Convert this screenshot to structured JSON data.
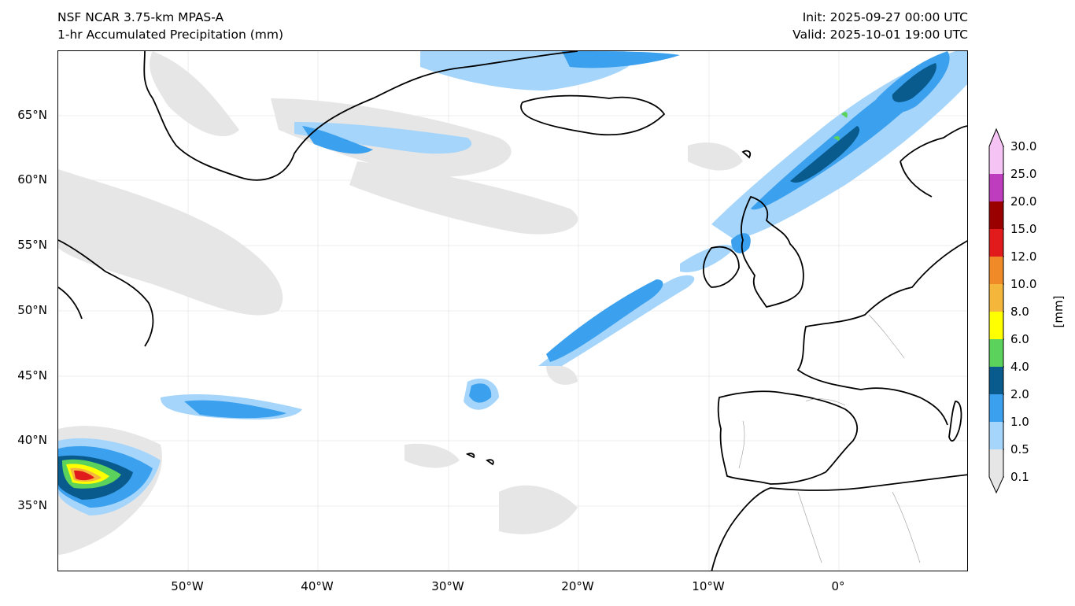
{
  "header": {
    "model": "NSF NCAR 3.75-km MPAS-A",
    "field": "1-hr Accumulated Precipitation (mm)",
    "init": "Init: 2025-09-27 00:00 UTC",
    "valid": "Valid: 2025-10-01 19:00 UTC"
  },
  "map": {
    "lat_labels": [
      "65°N",
      "60°N",
      "55°N",
      "50°N",
      "45°N",
      "40°N",
      "35°N"
    ],
    "lat_values": [
      65,
      60,
      55,
      50,
      45,
      40,
      35
    ],
    "lon_labels": [
      "50°W",
      "40°W",
      "30°W",
      "20°W",
      "10°W",
      "0°"
    ],
    "lon_values": [
      -50,
      -40,
      -30,
      -20,
      -10,
      0
    ],
    "extent": {
      "lon_min": -60,
      "lon_max": 10,
      "lat_min": 30,
      "lat_max": 70
    }
  },
  "colorbar": {
    "unit": "[mm]",
    "levels": [
      "0.1",
      "0.5",
      "1.0",
      "2.0",
      "4.0",
      "6.0",
      "8.0",
      "10.0",
      "12.0",
      "15.0",
      "20.0",
      "25.0",
      "30.0"
    ],
    "colors": [
      "#e6e6e6",
      "#a5d5fb",
      "#3ba0ee",
      "#095b8d",
      "#5bd25b",
      "#ffff00",
      "#f5b63c",
      "#f08a28",
      "#e11b1b",
      "#9a0000",
      "#be3cbe",
      "#f5c4f5"
    ]
  }
}
